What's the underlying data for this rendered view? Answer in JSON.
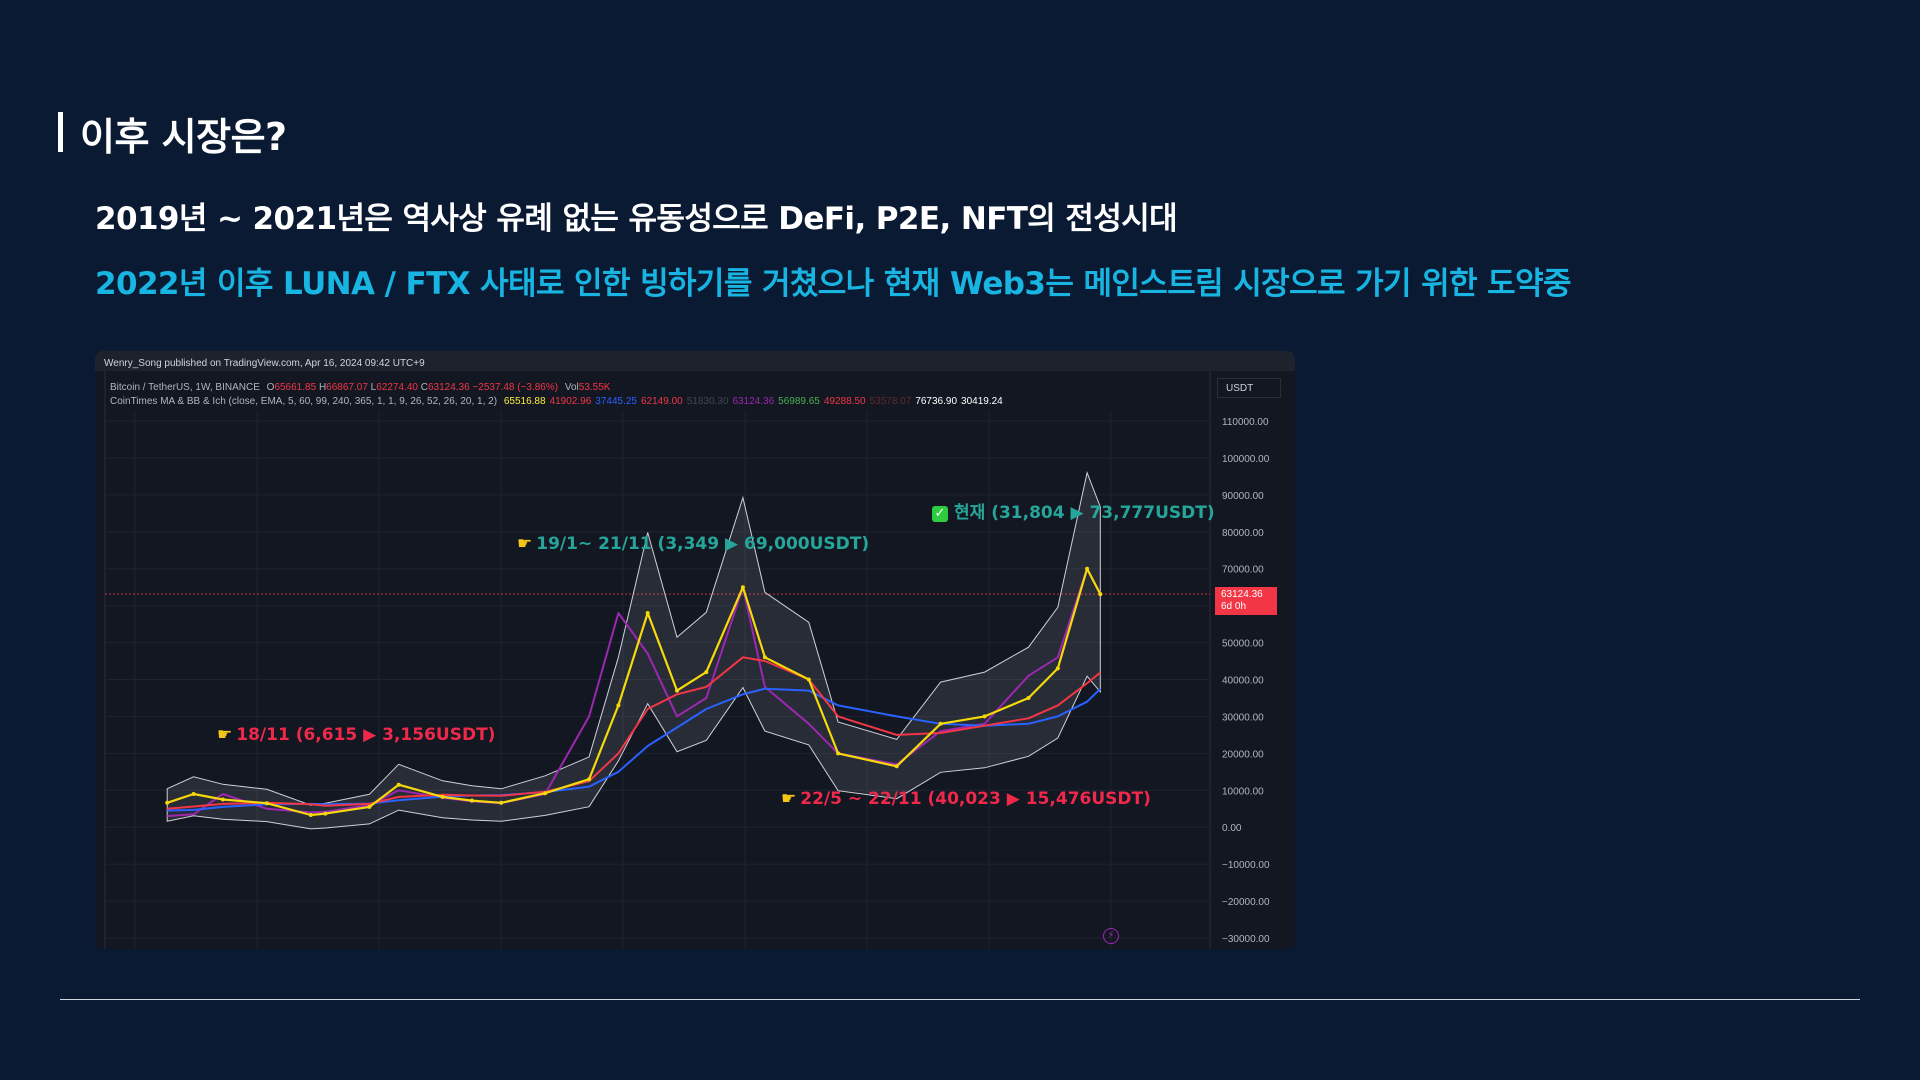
{
  "slide": {
    "title": "이후 시장은?",
    "line1": "2019년 ~ 2021년은 역사상 유례 없는 유동성으로 DeFi, P2E, NFT의 전성시대",
    "line2": "2022년 이후 LUNA / FTX 사태로 인한 빙하기를 거쳤으나 현재 Web3는 메인스트림 시장으로 가기 위한 도약중",
    "accent_color": "#18b4e2"
  },
  "chart": {
    "published": "Wenry_Song published on TradingView.com, Apr 16, 2024 09:42 UTC+9",
    "symbol_line": {
      "pair": "Bitcoin / TetherUS, 1W, BINANCE",
      "o_label": "O",
      "o": "65661.85",
      "h_label": "H",
      "h": "66867.07",
      "l_label": "L",
      "l": "62274.40",
      "c_label": "C",
      "c": "63124.36",
      "change": "−2537.48 (−3.86%)",
      "vol_label": "Vol",
      "vol": "53.55K"
    },
    "indicator_line": {
      "name": "CoinTimes MA & BB & Ich (close, EMA, 5, 60, 99, 240, 365, 1, 1, 9, 26, 52, 26, 20, 1, 2)",
      "values": [
        {
          "v": "65516.88",
          "color": "#ffeb3b"
        },
        {
          "v": "41902.96",
          "color": "#f23645"
        },
        {
          "v": "37445.25",
          "color": "#2962ff"
        },
        {
          "v": "62149.00",
          "color": "#f23645"
        },
        {
          "v": "51830.30",
          "color": "#434651"
        },
        {
          "v": "63124.36",
          "color": "#9c27b0"
        },
        {
          "v": "56989.65",
          "color": "#4caf50"
        },
        {
          "v": "49288.50",
          "color": "#f23645"
        },
        {
          "v": "53578.07",
          "color": "#5d2a2a"
        },
        {
          "v": "76736.90",
          "color": "#ffffff"
        },
        {
          "v": "30419.24",
          "color": "#ffffff"
        }
      ]
    },
    "currency": "USDT",
    "last_price": "63124.36",
    "countdown": "6d 0h",
    "annotations": {
      "current": "현재 (31,804 ▶ 73,777USDT)",
      "bull": "19/1~ 21/11 (3,349 ▶ 69,000USDT)",
      "bear2018": "18/11 (6,615 ▶ 3,156USDT)",
      "bear2022": "22/5 ~ 22/11 (40,023 ▶ 15,476USDT)",
      "hand_icon": "pointing-hand-icon",
      "check_icon": "check-mark-icon"
    }
  },
  "chart_data": {
    "type": "line",
    "title": "Bitcoin / TetherUS, 1W, BINANCE",
    "xlabel": "",
    "ylabel": "",
    "ylim": [
      -30000,
      110000
    ],
    "yticks": [
      "110000.00",
      "100000.00",
      "90000.00",
      "80000.00",
      "70000.00",
      "60000.00",
      "50000.00",
      "40000.00",
      "30000.00",
      "20000.00",
      "10000.00",
      "0.00",
      "−10000.00",
      "−20000.00",
      "−30000.00"
    ],
    "x": [
      2017.92,
      2018.1,
      2018.3,
      2018.6,
      2018.9,
      2019.0,
      2019.3,
      2019.5,
      2019.8,
      2020.0,
      2020.2,
      2020.5,
      2020.8,
      2021.0,
      2021.2,
      2021.4,
      2021.6,
      2021.85,
      2022.0,
      2022.3,
      2022.5,
      2022.9,
      2023.2,
      2023.5,
      2023.8,
      2024.0,
      2024.2,
      2024.29
    ],
    "series": [
      {
        "name": "",
        "color": "#f5d90a",
        "values": [
          6615,
          9000,
          7500,
          6500,
          3300,
          3700,
          5500,
          11500,
          8200,
          7200,
          6600,
          9200,
          13000,
          33000,
          58000,
          37000,
          42000,
          65000,
          46000,
          40000,
          20000,
          16500,
          28000,
          30000,
          35000,
          43000,
          70000,
          63124
        ]
      },
      {
        "name": "",
        "color": "#2962ff",
        "values": [
          4500,
          4700,
          5500,
          6200,
          6300,
          6200,
          6400,
          7300,
          8300,
          8600,
          8700,
          9500,
          11000,
          15000,
          22000,
          27000,
          32000,
          36000,
          37500,
          37000,
          33000,
          30000,
          28000,
          27500,
          28000,
          30000,
          34000,
          37445
        ]
      },
      {
        "name": "",
        "color": "#f23645",
        "values": [
          5000,
          5600,
          6300,
          6600,
          6200,
          5800,
          6300,
          8200,
          8800,
          8600,
          8500,
          9600,
          12500,
          20000,
          32000,
          36000,
          38000,
          46000,
          45000,
          40000,
          30000,
          25000,
          25500,
          27500,
          29500,
          33000,
          39000,
          41903
        ]
      },
      {
        "name": "",
        "color": "#9c27b0",
        "values": [
          3000,
          3500,
          9000,
          5000,
          4000,
          4200,
          6000,
          10000,
          8000,
          7000,
          6500,
          9000,
          30000,
          58000,
          47000,
          30000,
          35000,
          65000,
          38000,
          28000,
          20000,
          17000,
          26000,
          28000,
          41000,
          46000,
          70000,
          63124
        ]
      }
    ]
  }
}
